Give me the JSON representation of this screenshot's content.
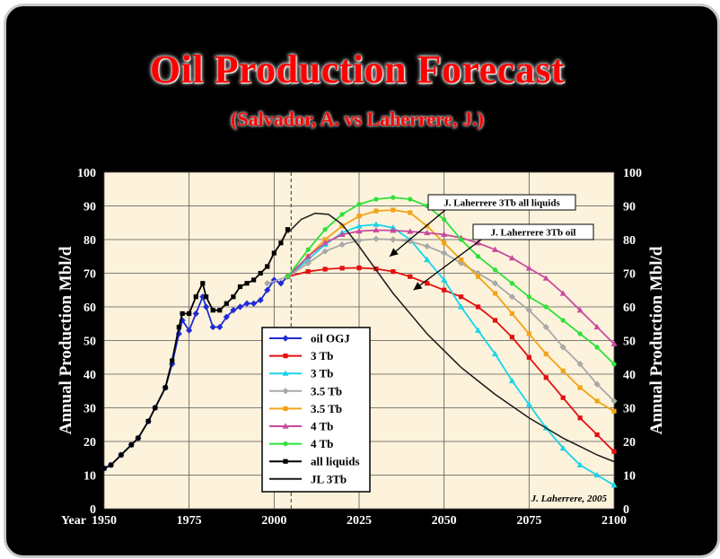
{
  "header": {
    "title": "Oil Production Forecast",
    "subtitle": "(Salvador, A. vs Laherrere, J.)"
  },
  "chart_data": {
    "type": "line",
    "title": "Oil Production Forecast",
    "xlabel": "Year",
    "ylabel": "Annual Production Mbl/d",
    "ylabel_right": "Annual Production Mbl/d",
    "xlim": [
      1950,
      2100
    ],
    "ylim": [
      0,
      100
    ],
    "x_ticks": [
      1950,
      1975,
      2000,
      2025,
      2050,
      2075,
      2100
    ],
    "y_ticks": [
      0,
      10,
      20,
      30,
      40,
      50,
      60,
      70,
      80,
      90,
      100
    ],
    "grid": true,
    "marker_line_x": 2005,
    "credit": "J. Laherrere, 2005",
    "legend_position": "center-left",
    "annotations": [
      {
        "text": "J. Laherrere 3Tb all liquids",
        "target": [
          2034,
          75
        ]
      },
      {
        "text": "J. Laherrere 3Tb oil",
        "target": [
          2041,
          65
        ]
      }
    ],
    "series": [
      {
        "name": "oil OGJ",
        "color": "#1f2bd8",
        "marker": "diamond",
        "x": [
          1950,
          1952,
          1955,
          1958,
          1960,
          1963,
          1965,
          1968,
          1970,
          1972,
          1973,
          1975,
          1977,
          1979,
          1980,
          1982,
          1984,
          1986,
          1988,
          1990,
          1992,
          1994,
          1996,
          1998,
          2000,
          2002,
          2004
        ],
        "y": [
          12,
          13,
          16,
          19,
          21,
          26,
          30,
          36,
          43,
          52,
          56,
          53,
          58,
          63,
          60,
          54,
          54,
          57,
          59,
          60,
          61,
          61,
          62,
          65,
          68,
          67,
          69
        ]
      },
      {
        "name": "3 Tb",
        "color": "#e31010",
        "marker": "square",
        "x": [
          2004,
          2010,
          2015,
          2020,
          2025,
          2030,
          2035,
          2040,
          2045,
          2050,
          2055,
          2060,
          2065,
          2070,
          2075,
          2080,
          2085,
          2090,
          2095,
          2100
        ],
        "y": [
          69,
          70.5,
          71.2,
          71.5,
          71.6,
          71.3,
          70.5,
          69,
          67,
          65,
          63,
          60,
          56,
          51,
          45,
          39,
          33,
          27,
          22,
          17
        ]
      },
      {
        "name": "3 Tb",
        "color": "#19d4e8",
        "marker": "triangle",
        "x": [
          2004,
          2010,
          2015,
          2020,
          2025,
          2030,
          2035,
          2040,
          2045,
          2050,
          2055,
          2060,
          2065,
          2070,
          2075,
          2080,
          2085,
          2090,
          2095,
          2100
        ],
        "y": [
          69,
          74,
          78.5,
          82,
          84,
          84.5,
          83.5,
          80,
          74,
          68,
          60,
          53,
          46,
          38,
          31,
          24,
          18,
          13,
          10,
          7
        ]
      },
      {
        "name": "3.5 Tb",
        "color": "#a8a8a8",
        "marker": "diamond",
        "x": [
          1998,
          2004,
          2010,
          2015,
          2020,
          2025,
          2030,
          2035,
          2040,
          2045,
          2050,
          2055,
          2060,
          2065,
          2070,
          2075,
          2080,
          2085,
          2090,
          2095,
          2100
        ],
        "y": [
          67,
          69,
          73,
          76.5,
          78.5,
          79.8,
          80.2,
          80,
          79.5,
          78,
          76,
          73,
          70,
          67,
          63,
          59,
          54,
          48,
          43,
          37,
          32
        ]
      },
      {
        "name": "3.5 Tb",
        "color": "#f2a418",
        "marker": "square",
        "x": [
          2004,
          2010,
          2015,
          2020,
          2025,
          2030,
          2035,
          2040,
          2045,
          2050,
          2055,
          2060,
          2065,
          2070,
          2075,
          2080,
          2085,
          2090,
          2095,
          2100
        ],
        "y": [
          69,
          75,
          80,
          84,
          87,
          88.5,
          88.8,
          88,
          84,
          79,
          74,
          69,
          64,
          58,
          52,
          46,
          41,
          36,
          32,
          29
        ]
      },
      {
        "name": "4 Tb",
        "color": "#c94aa0",
        "marker": "triangle",
        "x": [
          2004,
          2010,
          2015,
          2020,
          2025,
          2030,
          2035,
          2040,
          2045,
          2050,
          2055,
          2060,
          2065,
          2070,
          2075,
          2080,
          2085,
          2090,
          2095,
          2100
        ],
        "y": [
          69,
          75,
          79,
          81.5,
          82.5,
          82.8,
          82.7,
          82.4,
          82,
          81.5,
          80.5,
          79,
          77,
          74.5,
          71.5,
          68.5,
          64,
          59,
          54,
          49
        ]
      },
      {
        "name": "4 Tb",
        "color": "#2fe03a",
        "marker": "circle",
        "x": [
          2004,
          2010,
          2015,
          2020,
          2025,
          2030,
          2035,
          2040,
          2045,
          2050,
          2055,
          2060,
          2065,
          2070,
          2075,
          2080,
          2085,
          2090,
          2095,
          2100
        ],
        "y": [
          69,
          77,
          83,
          87.5,
          90.5,
          92,
          92.5,
          92,
          90,
          86,
          80,
          75,
          71,
          67,
          63,
          60,
          56,
          52,
          48,
          43
        ]
      },
      {
        "name": "all liquids",
        "color": "#000000",
        "marker": "square",
        "x": [
          1950,
          1952,
          1955,
          1958,
          1960,
          1963,
          1965,
          1968,
          1970,
          1972,
          1973,
          1975,
          1977,
          1979,
          1980,
          1982,
          1984,
          1986,
          1988,
          1990,
          1992,
          1994,
          1996,
          1998,
          2000,
          2002,
          2004
        ],
        "y": [
          12,
          13,
          16,
          19,
          21,
          26,
          30,
          36,
          44,
          54,
          58,
          58,
          63,
          67,
          63,
          59,
          59,
          61,
          63,
          66,
          67,
          68,
          70,
          72,
          76,
          79,
          83
        ]
      },
      {
        "name": "JL 3Tb",
        "color": "#1a1a1a",
        "marker": "none",
        "x": [
          2004,
          2008,
          2012,
          2016,
          2020,
          2025,
          2030,
          2035,
          2040,
          2045,
          2050,
          2055,
          2060,
          2065,
          2070,
          2075,
          2080,
          2085,
          2090,
          2095,
          2100
        ],
        "y": [
          82,
          86,
          87.8,
          87.5,
          84.5,
          78,
          71,
          64,
          58,
          52,
          47,
          42,
          38,
          34,
          30.5,
          27,
          24,
          21,
          18.5,
          16,
          14
        ]
      }
    ]
  }
}
